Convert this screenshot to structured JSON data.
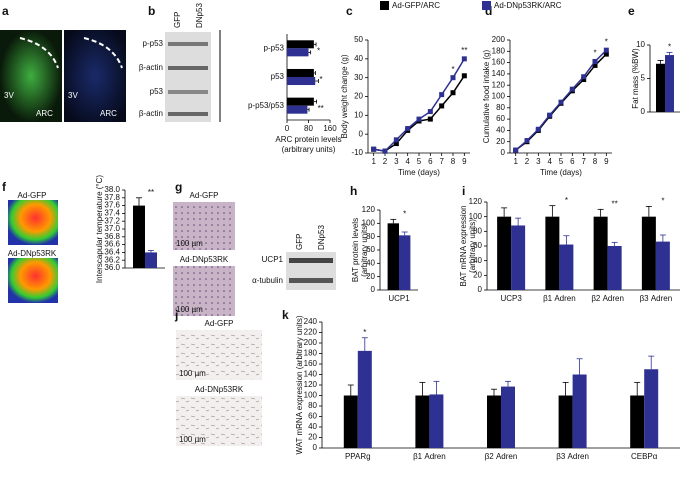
{
  "legend": [
    {
      "name": "Ad-GFP/ARC",
      "color": "#000000"
    },
    {
      "name": "Ad-DNp53RK/ARC",
      "color": "#2e3192"
    }
  ],
  "panel_letters": [
    "a",
    "b",
    "c",
    "d",
    "e",
    "f",
    "g",
    "h",
    "i",
    "j",
    "k"
  ],
  "panel_a": {
    "left_labels": [
      "3V",
      "ARC"
    ],
    "right_labels": [
      "3V",
      "ARC"
    ]
  },
  "panel_b": {
    "blot_rows": [
      "p-p53",
      "β-actin",
      "p53",
      "β-actin"
    ],
    "blot_columns": [
      "GFP",
      "DNp53"
    ]
  },
  "panel_f": {
    "images": [
      "Ad-GFP",
      "Ad-DNp53RK"
    ]
  },
  "panel_g": {
    "images": [
      "Ad-GFP",
      "Ad-DNp53RK"
    ],
    "scale_bars": [
      "100 µm",
      "100 µm"
    ],
    "blot_rows": [
      "UCP1",
      "α-tubulin"
    ],
    "blot_columns": [
      "GFP",
      "DNp53"
    ]
  },
  "panel_j": {
    "images": [
      "Ad-GFP",
      "Ad-DNp53RK"
    ],
    "scale_bars": [
      "100 µm",
      "100 µm"
    ]
  },
  "chart_data": [
    {
      "type": "hbar",
      "categories": [
        "p-p53",
        "p53",
        "p-p53/p53"
      ],
      "series": [
        {
          "color": "#000000",
          "values": [
            100,
            100,
            100
          ],
          "errors": [
            8,
            6,
            10
          ]
        },
        {
          "color": "#2e3192",
          "values": [
            80,
            105,
            76
          ],
          "errors": [
            8,
            12,
            6
          ]
        }
      ],
      "annotations": [
        "*",
        "*",
        "**"
      ],
      "xlim": [
        0,
        160
      ],
      "xticks": [
        0,
        80,
        160
      ],
      "xlabel": [
        "ARC protein levels",
        "(arbitrary units)"
      ]
    },
    {
      "type": "line",
      "x": [
        1,
        2,
        3,
        4,
        5,
        6,
        7,
        8,
        9
      ],
      "series": [
        {
          "color": "#000000",
          "values": [
            -8,
            -9,
            -5,
            2,
            7,
            8,
            15,
            22,
            31
          ]
        },
        {
          "color": "#2e3192",
          "values": [
            -8,
            -9,
            -3,
            3,
            8,
            12,
            21,
            30,
            40
          ]
        }
      ],
      "annotations": [
        null,
        null,
        null,
        null,
        null,
        null,
        null,
        "*",
        "**"
      ],
      "xlim": [
        0.5,
        9.5
      ],
      "xticks": [
        1,
        2,
        3,
        4,
        5,
        6,
        7,
        8,
        9
      ],
      "ylim": [
        -10,
        50
      ],
      "yticks": [
        -10,
        0,
        10,
        20,
        30,
        40,
        50
      ],
      "xlabel": [
        "Time (days)"
      ],
      "ylabel": [
        "Body weight change (g)"
      ]
    },
    {
      "type": "line",
      "x": [
        1,
        2,
        3,
        4,
        5,
        6,
        7,
        8,
        9
      ],
      "series": [
        {
          "color": "#000000",
          "values": [
            5,
            20,
            40,
            65,
            88,
            110,
            130,
            155,
            175
          ]
        },
        {
          "color": "#2e3192",
          "values": [
            5,
            22,
            42,
            67,
            90,
            113,
            135,
            162,
            182
          ]
        }
      ],
      "annotations": [
        null,
        null,
        null,
        null,
        null,
        null,
        null,
        "*",
        "*"
      ],
      "xlim": [
        0.5,
        9.5
      ],
      "xticks": [
        1,
        2,
        3,
        4,
        5,
        6,
        7,
        8,
        9
      ],
      "ylim": [
        0,
        200
      ],
      "yticks": [
        0,
        20,
        40,
        60,
        80,
        100,
        120,
        140,
        160,
        180,
        200
      ],
      "xlabel": [
        "Time (days)"
      ],
      "ylabel": [
        "Cumulative food intake (g)"
      ]
    },
    {
      "type": "bar",
      "categories": [
        null
      ],
      "series": [
        {
          "color": "#000000",
          "values": [
            7.2
          ],
          "errors": [
            0.5
          ]
        },
        {
          "color": "#2e3192",
          "values": [
            8.5
          ],
          "errors": [
            0.4
          ]
        }
      ],
      "annotations": [
        "*"
      ],
      "ylim": [
        0,
        10
      ],
      "yticks": [
        0,
        5,
        10
      ],
      "ylabel": [
        "Fat mass (%BW)"
      ]
    },
    {
      "type": "bar",
      "categories": [
        null
      ],
      "series": [
        {
          "color": "#000000",
          "values": [
            37.6
          ],
          "errors": [
            0.2
          ]
        },
        {
          "color": "#2e3192",
          "values": [
            36.4
          ],
          "errors": [
            0.05
          ]
        }
      ],
      "annotations": [
        "**"
      ],
      "ylim": [
        36,
        38
      ],
      "yticks": [
        {
          "value": 36,
          "label": "36.0"
        },
        36.2,
        36.4,
        36.6,
        36.8,
        {
          "value": 37,
          "label": "37.0"
        },
        37.2,
        37.4,
        37.6,
        37.8,
        {
          "value": 38,
          "label": "38.0"
        }
      ],
      "ylabel": [
        "Interscapular temperature (°C)"
      ]
    },
    {
      "type": "bar",
      "categories": [
        "UCP1"
      ],
      "series": [
        {
          "color": "#000000",
          "values": [
            100
          ],
          "errors": [
            6
          ]
        },
        {
          "color": "#2e3192",
          "values": [
            82
          ],
          "errors": [
            5
          ]
        }
      ],
      "annotations": [
        "*"
      ],
      "ylim": [
        0,
        120
      ],
      "yticks": [
        0,
        20,
        40,
        60,
        80,
        100,
        120
      ],
      "ylabel": [
        "BAT protein levels",
        "(arbitrary units)"
      ]
    },
    {
      "type": "bar",
      "categories": [
        "UCP3",
        "β1 Adren",
        "β2 Adren",
        "β3 Adren"
      ],
      "series": [
        {
          "color": "#000000",
          "values": [
            100,
            100,
            100,
            100
          ],
          "errors": [
            12,
            15,
            10,
            14
          ]
        },
        {
          "color": "#2e3192",
          "values": [
            88,
            62,
            60,
            66
          ],
          "errors": [
            10,
            12,
            5,
            9
          ]
        }
      ],
      "annotations": [
        null,
        "*",
        "**",
        "*"
      ],
      "ylim": [
        0,
        120
      ],
      "yticks": [
        0,
        20,
        40,
        60,
        80,
        100,
        120
      ],
      "ylabel": [
        "BAT mRNA expression",
        "(arbitrary units)"
      ]
    },
    {
      "type": "bar",
      "categories": [
        "PPARg",
        "β1 Adren",
        "β2 Adren",
        "β3 Adren",
        "CEBPα"
      ],
      "series": [
        {
          "color": "#000000",
          "values": [
            100,
            100,
            100,
            100,
            100
          ],
          "errors": [
            20,
            25,
            12,
            25,
            25
          ]
        },
        {
          "color": "#2e3192",
          "values": [
            185,
            102,
            117,
            140,
            150
          ],
          "errors": [
            25,
            25,
            10,
            30,
            25
          ]
        }
      ],
      "annotations": [
        "*",
        null,
        null,
        null,
        null
      ],
      "ylim": [
        0,
        240
      ],
      "yticks": [
        0,
        20,
        40,
        60,
        80,
        100,
        120,
        140,
        160,
        180,
        200,
        220,
        240
      ],
      "ylabel": [
        "WAT mRNA expression (arbitrary units)"
      ]
    }
  ]
}
